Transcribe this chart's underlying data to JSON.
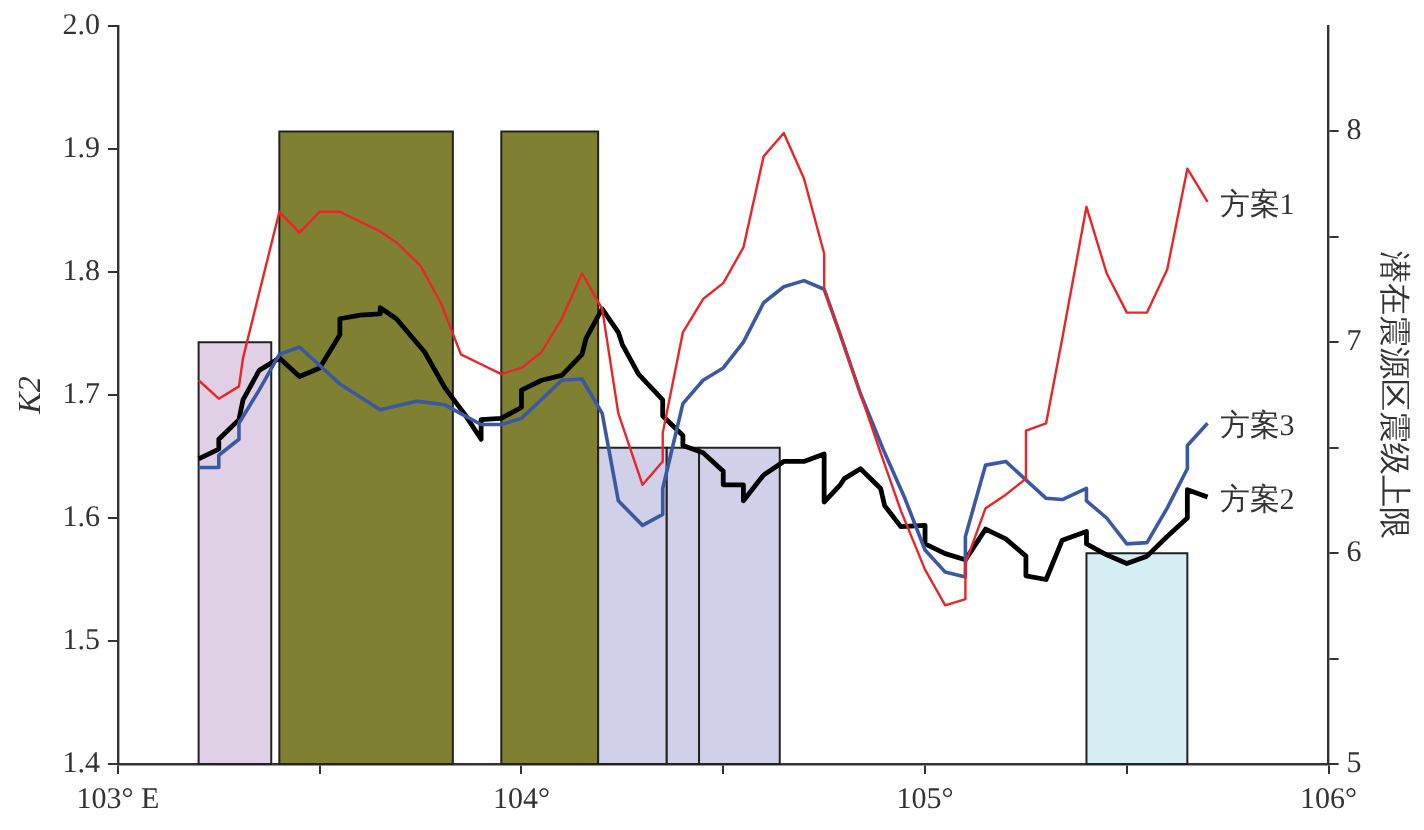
{
  "chart_data": {
    "type": "line",
    "ylabel": "K2",
    "y2label": "潜在震源区震级上限",
    "xlim": [
      103,
      106
    ],
    "xticks": [
      {
        "value": 103,
        "label": "103° E"
      },
      {
        "value": 103.5,
        "label": null
      },
      {
        "value": 104,
        "label": "104°"
      },
      {
        "value": 104.5,
        "label": null
      },
      {
        "value": 105,
        "label": "105°"
      },
      {
        "value": 105.5,
        "label": null
      },
      {
        "value": 106,
        "label": "106°"
      }
    ],
    "ylim": [
      1.4,
      2.0
    ],
    "yticks": [
      {
        "value": 1.4,
        "label": "1.4"
      },
      {
        "value": 1.5,
        "label": "1.5"
      },
      {
        "value": 1.6,
        "label": "1.6"
      },
      {
        "value": 1.7,
        "label": "1.7"
      },
      {
        "value": 1.8,
        "label": "1.8"
      },
      {
        "value": 1.9,
        "label": "1.9"
      },
      {
        "value": 2.0,
        "label": "2.0"
      }
    ],
    "y2lim": [
      5,
      8.5
    ],
    "y2ticks": [
      5,
      {
        "value": 5.5,
        "label": null
      },
      6,
      {
        "value": 6.5,
        "label": null
      },
      7,
      {
        "value": 7.5,
        "label": null
      },
      8
    ],
    "grid": false,
    "legend": false,
    "marker": "none",
    "line_style": "solid",
    "series": [
      {
        "type": "histogram",
        "axis": "y2",
        "bins": [
          103.2,
          103.38,
          103.4,
          103.83,
          103.95,
          104.19,
          104.36,
          104.44,
          104.64,
          105.4,
          105.65
        ],
        "values": [
          7,
          null,
          8,
          null,
          8,
          6.5,
          6.5,
          6.5,
          null,
          6
        ],
        "colors": [
          "#e0d0e6",
          null,
          "#808033",
          null,
          "#808033",
          "#d0d0e8",
          "#d0d0e8",
          "#d0d0e8",
          null,
          "#d4eef4"
        ]
      },
      {
        "name": "方案1",
        "color": "#e8262a",
        "x": [
          103.2,
          103.25,
          103.3,
          103.31,
          103.4,
          103.45,
          103.5,
          103.55,
          103.65,
          103.69,
          103.75,
          103.8,
          103.85,
          103.9,
          103.95,
          104.0,
          104.05,
          104.1,
          104.15,
          104.2,
          104.24,
          104.3,
          104.35,
          104.35,
          104.4,
          104.45,
          104.5,
          104.55,
          104.6,
          104.65,
          104.7,
          104.75,
          104.75,
          104.79,
          104.84,
          104.89,
          104.94,
          105.0,
          105.05,
          105.1,
          105.1,
          105.15,
          105.2,
          105.25,
          105.25,
          105.3,
          105.34,
          105.4,
          105.45,
          105.5,
          105.55,
          105.6,
          105.65,
          105.7
        ],
        "values": [
          1.712,
          1.697,
          1.707,
          1.73,
          1.849,
          1.832,
          1.849,
          1.849,
          1.833,
          1.824,
          1.805,
          1.775,
          1.733,
          1.725,
          1.717,
          1.722,
          1.735,
          1.762,
          1.799,
          1.77,
          1.685,
          1.627,
          1.646,
          1.669,
          1.751,
          1.778,
          1.791,
          1.82,
          1.894,
          1.913,
          1.876,
          1.815,
          1.786,
          1.749,
          1.701,
          1.653,
          1.606,
          1.558,
          1.529,
          1.534,
          1.563,
          1.608,
          1.619,
          1.632,
          1.671,
          1.677,
          1.746,
          1.853,
          1.799,
          1.767,
          1.767,
          1.802,
          1.884,
          1.857
        ]
      },
      {
        "name": "方案3",
        "color": "#3b58a0",
        "x": [
          103.2,
          103.25,
          103.25,
          103.3,
          103.3,
          103.35,
          103.4,
          103.45,
          103.55,
          103.65,
          103.74,
          103.81,
          103.86,
          103.9,
          103.95,
          104.0,
          104.1,
          104.15,
          104.2,
          104.24,
          104.3,
          104.35,
          104.35,
          104.4,
          104.45,
          104.5,
          104.55,
          104.6,
          104.65,
          104.7,
          104.75,
          104.79,
          104.84,
          104.9,
          104.95,
          105.0,
          105.05,
          105.1,
          105.1,
          105.15,
          105.2,
          105.25,
          105.3,
          105.34,
          105.4,
          105.4,
          105.45,
          105.5,
          105.55,
          105.6,
          105.65,
          105.65,
          105.7
        ],
        "values": [
          1.641,
          1.641,
          1.651,
          1.664,
          1.677,
          1.704,
          1.733,
          1.739,
          1.709,
          1.688,
          1.695,
          1.692,
          1.683,
          1.676,
          1.676,
          1.681,
          1.712,
          1.713,
          1.685,
          1.614,
          1.594,
          1.603,
          1.624,
          1.693,
          1.712,
          1.722,
          1.743,
          1.775,
          1.788,
          1.793,
          1.786,
          1.749,
          1.701,
          1.653,
          1.616,
          1.574,
          1.556,
          1.552,
          1.585,
          1.643,
          1.646,
          1.631,
          1.616,
          1.615,
          1.624,
          1.614,
          1.6,
          1.579,
          1.58,
          1.608,
          1.64,
          1.659,
          1.677
        ]
      },
      {
        "name": "方案2",
        "color": "#000000",
        "x": [
          103.2,
          103.25,
          103.25,
          103.3,
          103.31,
          103.35,
          103.4,
          103.45,
          103.5,
          103.55,
          103.55,
          103.6,
          103.65,
          103.65,
          103.69,
          103.76,
          103.81,
          103.86,
          103.9,
          103.9,
          103.95,
          104.0,
          104.0,
          104.05,
          104.1,
          104.15,
          104.16,
          104.2,
          104.24,
          104.25,
          104.29,
          104.35,
          104.35,
          104.4,
          104.4,
          104.45,
          104.5,
          104.5,
          104.55,
          104.55,
          104.6,
          104.65,
          104.7,
          104.75,
          104.75,
          104.79,
          104.8,
          104.84,
          104.89,
          104.9,
          104.94,
          105.0,
          105.0,
          105.05,
          105.1,
          105.15,
          105.2,
          105.25,
          105.25,
          105.3,
          105.34,
          105.4,
          105.4,
          105.45,
          105.5,
          105.55,
          105.6,
          105.65,
          105.65,
          105.7
        ],
        "values": [
          1.648,
          1.656,
          1.664,
          1.68,
          1.696,
          1.72,
          1.73,
          1.715,
          1.722,
          1.749,
          1.762,
          1.765,
          1.766,
          1.771,
          1.762,
          1.735,
          1.706,
          1.684,
          1.664,
          1.68,
          1.681,
          1.69,
          1.704,
          1.712,
          1.716,
          1.733,
          1.746,
          1.77,
          1.751,
          1.741,
          1.717,
          1.696,
          1.683,
          1.667,
          1.659,
          1.653,
          1.638,
          1.627,
          1.627,
          1.614,
          1.635,
          1.646,
          1.646,
          1.652,
          1.613,
          1.627,
          1.632,
          1.64,
          1.624,
          1.61,
          1.593,
          1.594,
          1.579,
          1.571,
          1.566,
          1.591,
          1.583,
          1.569,
          1.553,
          1.55,
          1.582,
          1.589,
          1.579,
          1.57,
          1.563,
          1.569,
          1.585,
          1.6,
          1.623,
          1.617
        ]
      }
    ]
  }
}
